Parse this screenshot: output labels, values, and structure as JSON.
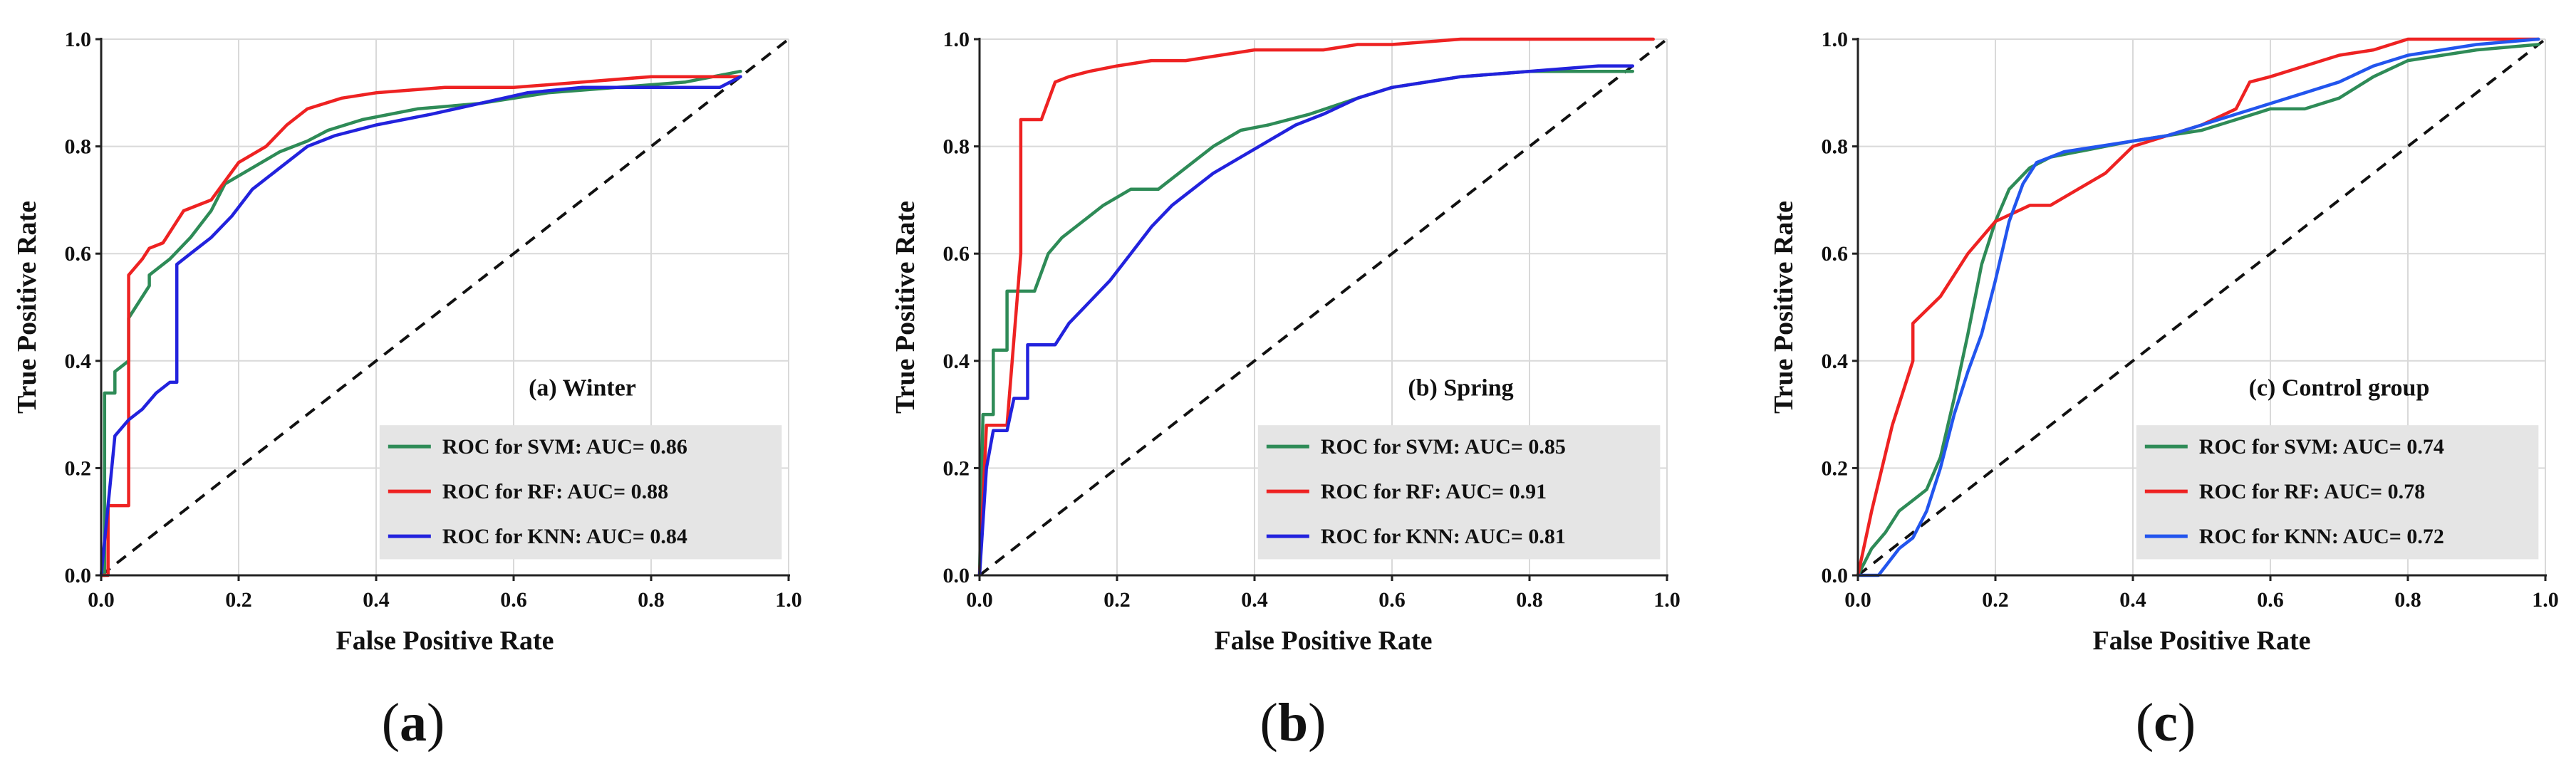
{
  "chart_data": [
    {
      "type": "line",
      "title": "(a) Winter",
      "sublabel": {
        "open": "(",
        "letter": "a",
        "close": ")"
      },
      "xlabel": "False Positive Rate",
      "ylabel": "True Positive Rate",
      "xlim": [
        0,
        1
      ],
      "ylim": [
        0,
        1
      ],
      "xticks": [
        "0.0",
        "0.2",
        "0.4",
        "0.6",
        "0.8",
        "1.0"
      ],
      "yticks": [
        "0.0",
        "0.2",
        "0.4",
        "0.6",
        "0.8",
        "1.0"
      ],
      "grid": true,
      "legend_position": "bottom-right",
      "baseline": {
        "x": [
          0,
          1
        ],
        "y": [
          0,
          1
        ],
        "style": "dashed"
      },
      "series": [
        {
          "name": "SVM",
          "label": "ROC for SVM: AUC= 0.86",
          "color": "#2e8b57",
          "x": [
            0,
            0.005,
            0.005,
            0.02,
            0.02,
            0.04,
            0.04,
            0.07,
            0.07,
            0.1,
            0.13,
            0.16,
            0.18,
            0.22,
            0.26,
            0.3,
            0.33,
            0.38,
            0.46,
            0.55,
            0.65,
            0.75,
            0.85,
            0.93
          ],
          "y": [
            0,
            0,
            0.34,
            0.34,
            0.38,
            0.4,
            0.48,
            0.54,
            0.56,
            0.59,
            0.63,
            0.68,
            0.73,
            0.76,
            0.79,
            0.81,
            0.83,
            0.85,
            0.87,
            0.88,
            0.9,
            0.91,
            0.92,
            0.94
          ]
        },
        {
          "name": "RF",
          "label": "ROC for RF: AUC= 0.88",
          "color": "#ee2222",
          "x": [
            0,
            0.01,
            0.01,
            0.04,
            0.04,
            0.06,
            0.07,
            0.09,
            0.12,
            0.16,
            0.2,
            0.24,
            0.27,
            0.3,
            0.35,
            0.4,
            0.5,
            0.6,
            0.7,
            0.8,
            0.9,
            0.93
          ],
          "y": [
            0,
            0,
            0.13,
            0.13,
            0.56,
            0.59,
            0.61,
            0.62,
            0.68,
            0.7,
            0.77,
            0.8,
            0.84,
            0.87,
            0.89,
            0.9,
            0.91,
            0.91,
            0.92,
            0.93,
            0.93,
            0.93
          ]
        },
        {
          "name": "KNN",
          "label": "ROC for KNN: AUC= 0.84",
          "color": "#2222dd",
          "x": [
            0,
            0.01,
            0.02,
            0.04,
            0.06,
            0.08,
            0.1,
            0.11,
            0.11,
            0.13,
            0.16,
            0.19,
            0.22,
            0.26,
            0.3,
            0.34,
            0.4,
            0.48,
            0.55,
            0.62,
            0.7,
            0.8,
            0.9,
            0.93
          ],
          "y": [
            0,
            0.13,
            0.26,
            0.29,
            0.31,
            0.34,
            0.36,
            0.36,
            0.58,
            0.6,
            0.63,
            0.67,
            0.72,
            0.76,
            0.8,
            0.82,
            0.84,
            0.86,
            0.88,
            0.9,
            0.91,
            0.91,
            0.91,
            0.93
          ]
        }
      ]
    },
    {
      "type": "line",
      "title": "(b) Spring",
      "sublabel": {
        "open": "(",
        "letter": "b",
        "close": ")"
      },
      "xlabel": "False Positive Rate",
      "ylabel": "True Positive Rate",
      "xlim": [
        0,
        1
      ],
      "ylim": [
        0,
        1
      ],
      "xticks": [
        "0.0",
        "0.2",
        "0.4",
        "0.6",
        "0.8",
        "1.0"
      ],
      "yticks": [
        "0.0",
        "0.2",
        "0.4",
        "0.6",
        "0.8",
        "1.0"
      ],
      "grid": true,
      "legend_position": "bottom-right",
      "baseline": {
        "x": [
          0,
          1
        ],
        "y": [
          0,
          1
        ],
        "style": "dashed"
      },
      "series": [
        {
          "name": "SVM",
          "label": "ROC for SVM: AUC= 0.85",
          "color": "#2e8b57",
          "x": [
            0,
            0.005,
            0.02,
            0.02,
            0.04,
            0.04,
            0.06,
            0.08,
            0.1,
            0.12,
            0.15,
            0.18,
            0.22,
            0.26,
            0.3,
            0.34,
            0.38,
            0.42,
            0.48,
            0.55,
            0.6,
            0.7,
            0.8,
            0.9,
            0.95
          ],
          "y": [
            0,
            0.3,
            0.3,
            0.42,
            0.42,
            0.53,
            0.53,
            0.53,
            0.6,
            0.63,
            0.66,
            0.69,
            0.72,
            0.72,
            0.76,
            0.8,
            0.83,
            0.84,
            0.86,
            0.89,
            0.91,
            0.93,
            0.94,
            0.94,
            0.94
          ]
        },
        {
          "name": "RF",
          "label": "ROC for RF: AUC= 0.91",
          "color": "#ee2222",
          "x": [
            0,
            0.01,
            0.04,
            0.06,
            0.06,
            0.09,
            0.11,
            0.13,
            0.16,
            0.2,
            0.25,
            0.3,
            0.35,
            0.4,
            0.45,
            0.5,
            0.55,
            0.6,
            0.7,
            0.8,
            0.9,
            0.98
          ],
          "y": [
            0,
            0.28,
            0.28,
            0.6,
            0.85,
            0.85,
            0.92,
            0.93,
            0.94,
            0.95,
            0.96,
            0.96,
            0.97,
            0.98,
            0.98,
            0.98,
            0.99,
            0.99,
            1.0,
            1.0,
            1.0,
            1.0
          ]
        },
        {
          "name": "KNN",
          "label": "ROC for KNN: AUC= 0.81",
          "color": "#2222dd",
          "x": [
            0,
            0.01,
            0.02,
            0.04,
            0.05,
            0.07,
            0.07,
            0.11,
            0.13,
            0.16,
            0.19,
            0.22,
            0.25,
            0.28,
            0.31,
            0.34,
            0.38,
            0.42,
            0.46,
            0.5,
            0.55,
            0.6,
            0.7,
            0.8,
            0.9,
            0.95
          ],
          "y": [
            0,
            0.2,
            0.27,
            0.27,
            0.33,
            0.33,
            0.43,
            0.43,
            0.47,
            0.51,
            0.55,
            0.6,
            0.65,
            0.69,
            0.72,
            0.75,
            0.78,
            0.81,
            0.84,
            0.86,
            0.89,
            0.91,
            0.93,
            0.94,
            0.95,
            0.95
          ]
        }
      ]
    },
    {
      "type": "line",
      "title": "(c) Control group",
      "sublabel": {
        "open": "(",
        "letter": "c",
        "close": ")"
      },
      "xlabel": "False Positive Rate",
      "ylabel": "True Positive Rate",
      "xlim": [
        0,
        1
      ],
      "ylim": [
        0,
        1
      ],
      "xticks": [
        "0.0",
        "0.2",
        "0.4",
        "0.6",
        "0.8",
        "1.0"
      ],
      "yticks": [
        "0.0",
        "0.2",
        "0.4",
        "0.6",
        "0.8",
        "1.0"
      ],
      "grid": true,
      "legend_position": "bottom-right",
      "baseline": {
        "x": [
          0,
          1
        ],
        "y": [
          0,
          1
        ],
        "style": "dashed"
      },
      "series": [
        {
          "name": "SVM",
          "label": "ROC for SVM: AUC= 0.74",
          "color": "#2e8b57",
          "x": [
            0,
            0.02,
            0.04,
            0.06,
            0.08,
            0.1,
            0.12,
            0.14,
            0.16,
            0.18,
            0.2,
            0.22,
            0.25,
            0.28,
            0.32,
            0.36,
            0.4,
            0.45,
            0.5,
            0.55,
            0.6,
            0.65,
            0.7,
            0.75,
            0.8,
            0.9,
            0.99
          ],
          "y": [
            0,
            0.05,
            0.08,
            0.12,
            0.14,
            0.16,
            0.22,
            0.33,
            0.45,
            0.58,
            0.66,
            0.72,
            0.76,
            0.78,
            0.79,
            0.8,
            0.81,
            0.82,
            0.83,
            0.85,
            0.87,
            0.87,
            0.89,
            0.93,
            0.96,
            0.98,
            0.99
          ]
        },
        {
          "name": "RF",
          "label": "ROC for RF: AUC= 0.78",
          "color": "#ee2222",
          "x": [
            0,
            0.02,
            0.05,
            0.08,
            0.08,
            0.12,
            0.16,
            0.2,
            0.25,
            0.28,
            0.32,
            0.36,
            0.4,
            0.45,
            0.5,
            0.55,
            0.57,
            0.6,
            0.65,
            0.7,
            0.75,
            0.8,
            0.9,
            0.99
          ],
          "y": [
            0,
            0.12,
            0.28,
            0.4,
            0.47,
            0.52,
            0.6,
            0.66,
            0.69,
            0.69,
            0.72,
            0.75,
            0.8,
            0.82,
            0.84,
            0.87,
            0.92,
            0.93,
            0.95,
            0.97,
            0.98,
            1.0,
            1.0,
            1.0
          ]
        },
        {
          "name": "KNN",
          "label": "ROC for KNN: AUC= 0.72",
          "color": "#2255ee",
          "x": [
            0,
            0.03,
            0.06,
            0.08,
            0.1,
            0.12,
            0.14,
            0.16,
            0.18,
            0.2,
            0.22,
            0.24,
            0.26,
            0.3,
            0.35,
            0.4,
            0.45,
            0.5,
            0.55,
            0.6,
            0.65,
            0.7,
            0.75,
            0.8,
            0.9,
            0.99
          ],
          "y": [
            0,
            0.0,
            0.05,
            0.07,
            0.12,
            0.2,
            0.3,
            0.38,
            0.45,
            0.55,
            0.66,
            0.73,
            0.77,
            0.79,
            0.8,
            0.81,
            0.82,
            0.84,
            0.86,
            0.88,
            0.9,
            0.92,
            0.95,
            0.97,
            0.99,
            1.0
          ]
        }
      ]
    }
  ]
}
